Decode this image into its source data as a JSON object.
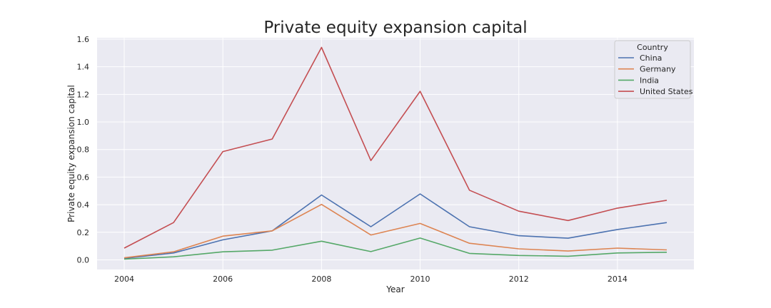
{
  "chart_data": {
    "type": "line",
    "title": "Private equity expansion capital",
    "xlabel": "Year",
    "ylabel": "Private equity expansion capital",
    "x": [
      2004,
      2005,
      2006,
      2007,
      2008,
      2009,
      2010,
      2011,
      2012,
      2013,
      2014,
      2015
    ],
    "xticks": [
      "2004",
      "2006",
      "2008",
      "2010",
      "2012",
      "2014"
    ],
    "yticks": [
      "0.0",
      "0.2",
      "0.4",
      "0.6",
      "0.8",
      "1.0",
      "1.2",
      "1.4",
      "1.6"
    ],
    "xlim": [
      2003.45,
      2015.55
    ],
    "ylim": [
      -0.07,
      1.61
    ],
    "grid": true,
    "legend": {
      "title": "Country",
      "placement": "top-right"
    },
    "series": [
      {
        "name": "China",
        "color": "#4c72b0",
        "values": [
          0.01,
          0.05,
          0.145,
          0.21,
          0.47,
          0.24,
          0.478,
          0.24,
          0.175,
          0.157,
          0.22,
          0.27
        ]
      },
      {
        "name": "Germany",
        "color": "#dd8452",
        "values": [
          0.015,
          0.058,
          0.172,
          0.21,
          0.402,
          0.18,
          0.264,
          0.12,
          0.08,
          0.064,
          0.085,
          0.072
        ]
      },
      {
        "name": "India",
        "color": "#55a868",
        "values": [
          0.005,
          0.022,
          0.058,
          0.07,
          0.135,
          0.06,
          0.158,
          0.047,
          0.032,
          0.026,
          0.05,
          0.055
        ]
      },
      {
        "name": "United States",
        "color": "#c44e52",
        "values": [
          0.085,
          0.27,
          0.785,
          0.876,
          1.54,
          0.72,
          1.222,
          0.505,
          0.353,
          0.285,
          0.375,
          0.432
        ]
      }
    ]
  }
}
